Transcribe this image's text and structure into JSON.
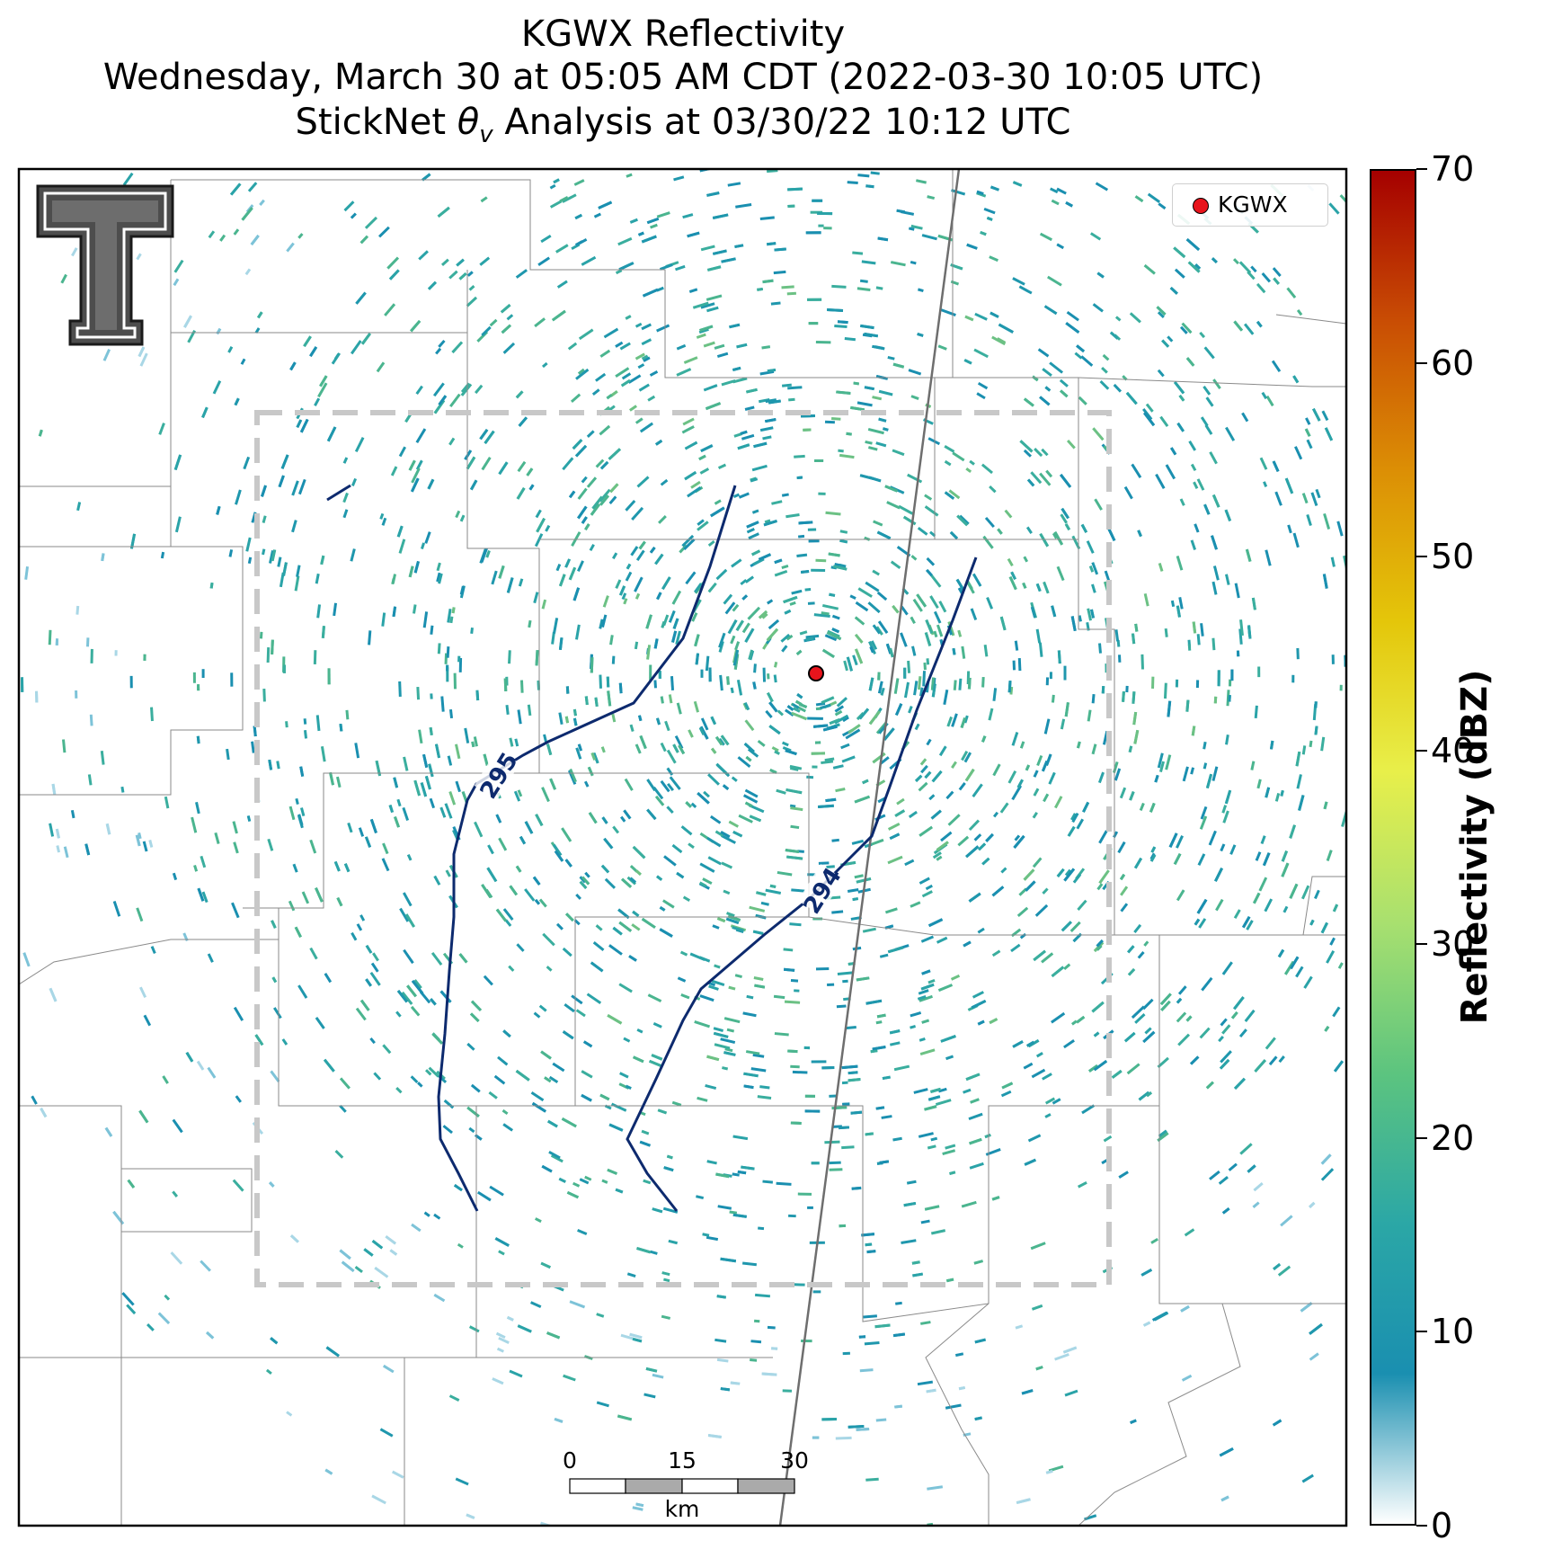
{
  "title": {
    "line1": "KGWX Reflectivity",
    "line2": "Wednesday, March 30 at 05:05 AM CDT (2022-03-30 10:05 UTC)",
    "line3_prefix": "StickNet ",
    "line3_symbol": "θ",
    "line3_subscript": "v",
    "line3_suffix": " Analysis at 03/30/22 10:12 UTC"
  },
  "legend": {
    "label": "KGWX",
    "marker_color": "#e8141c"
  },
  "colorbar": {
    "label": "Reflectivity (dBZ)",
    "ticks": [
      "0",
      "10",
      "20",
      "30",
      "40",
      "50",
      "60",
      "70"
    ],
    "range": [
      0,
      70
    ],
    "colors": [
      "#ffffff",
      "#1a8fb0",
      "#2ba7a6",
      "#5cc47f",
      "#a8e06f",
      "#e8ef4a",
      "#e4c60a",
      "#dc8f05",
      "#c94d04",
      "#a50000"
    ]
  },
  "scale_bar": {
    "ticks": [
      "0",
      "15",
      "30"
    ],
    "unit": "km"
  },
  "contour_labels": [
    "295",
    "294"
  ],
  "logo_icon": "texas-tech-double-t-logo",
  "chart_data": {
    "type": "radar-reflectivity-map",
    "title": "KGWX Reflectivity",
    "colorbar_label": "Reflectivity (dBZ)",
    "colorbar_range": [
      0,
      70
    ],
    "colorbar_ticks": [
      0,
      10,
      20,
      30,
      40,
      50,
      60,
      70
    ],
    "radar_site": "KGWX",
    "contours": [
      {
        "level": 295,
        "label": "295"
      },
      {
        "level": 294,
        "label": "294"
      }
    ],
    "scale_bar_km": [
      0,
      15,
      30
    ],
    "legend_placement": "top-right"
  }
}
